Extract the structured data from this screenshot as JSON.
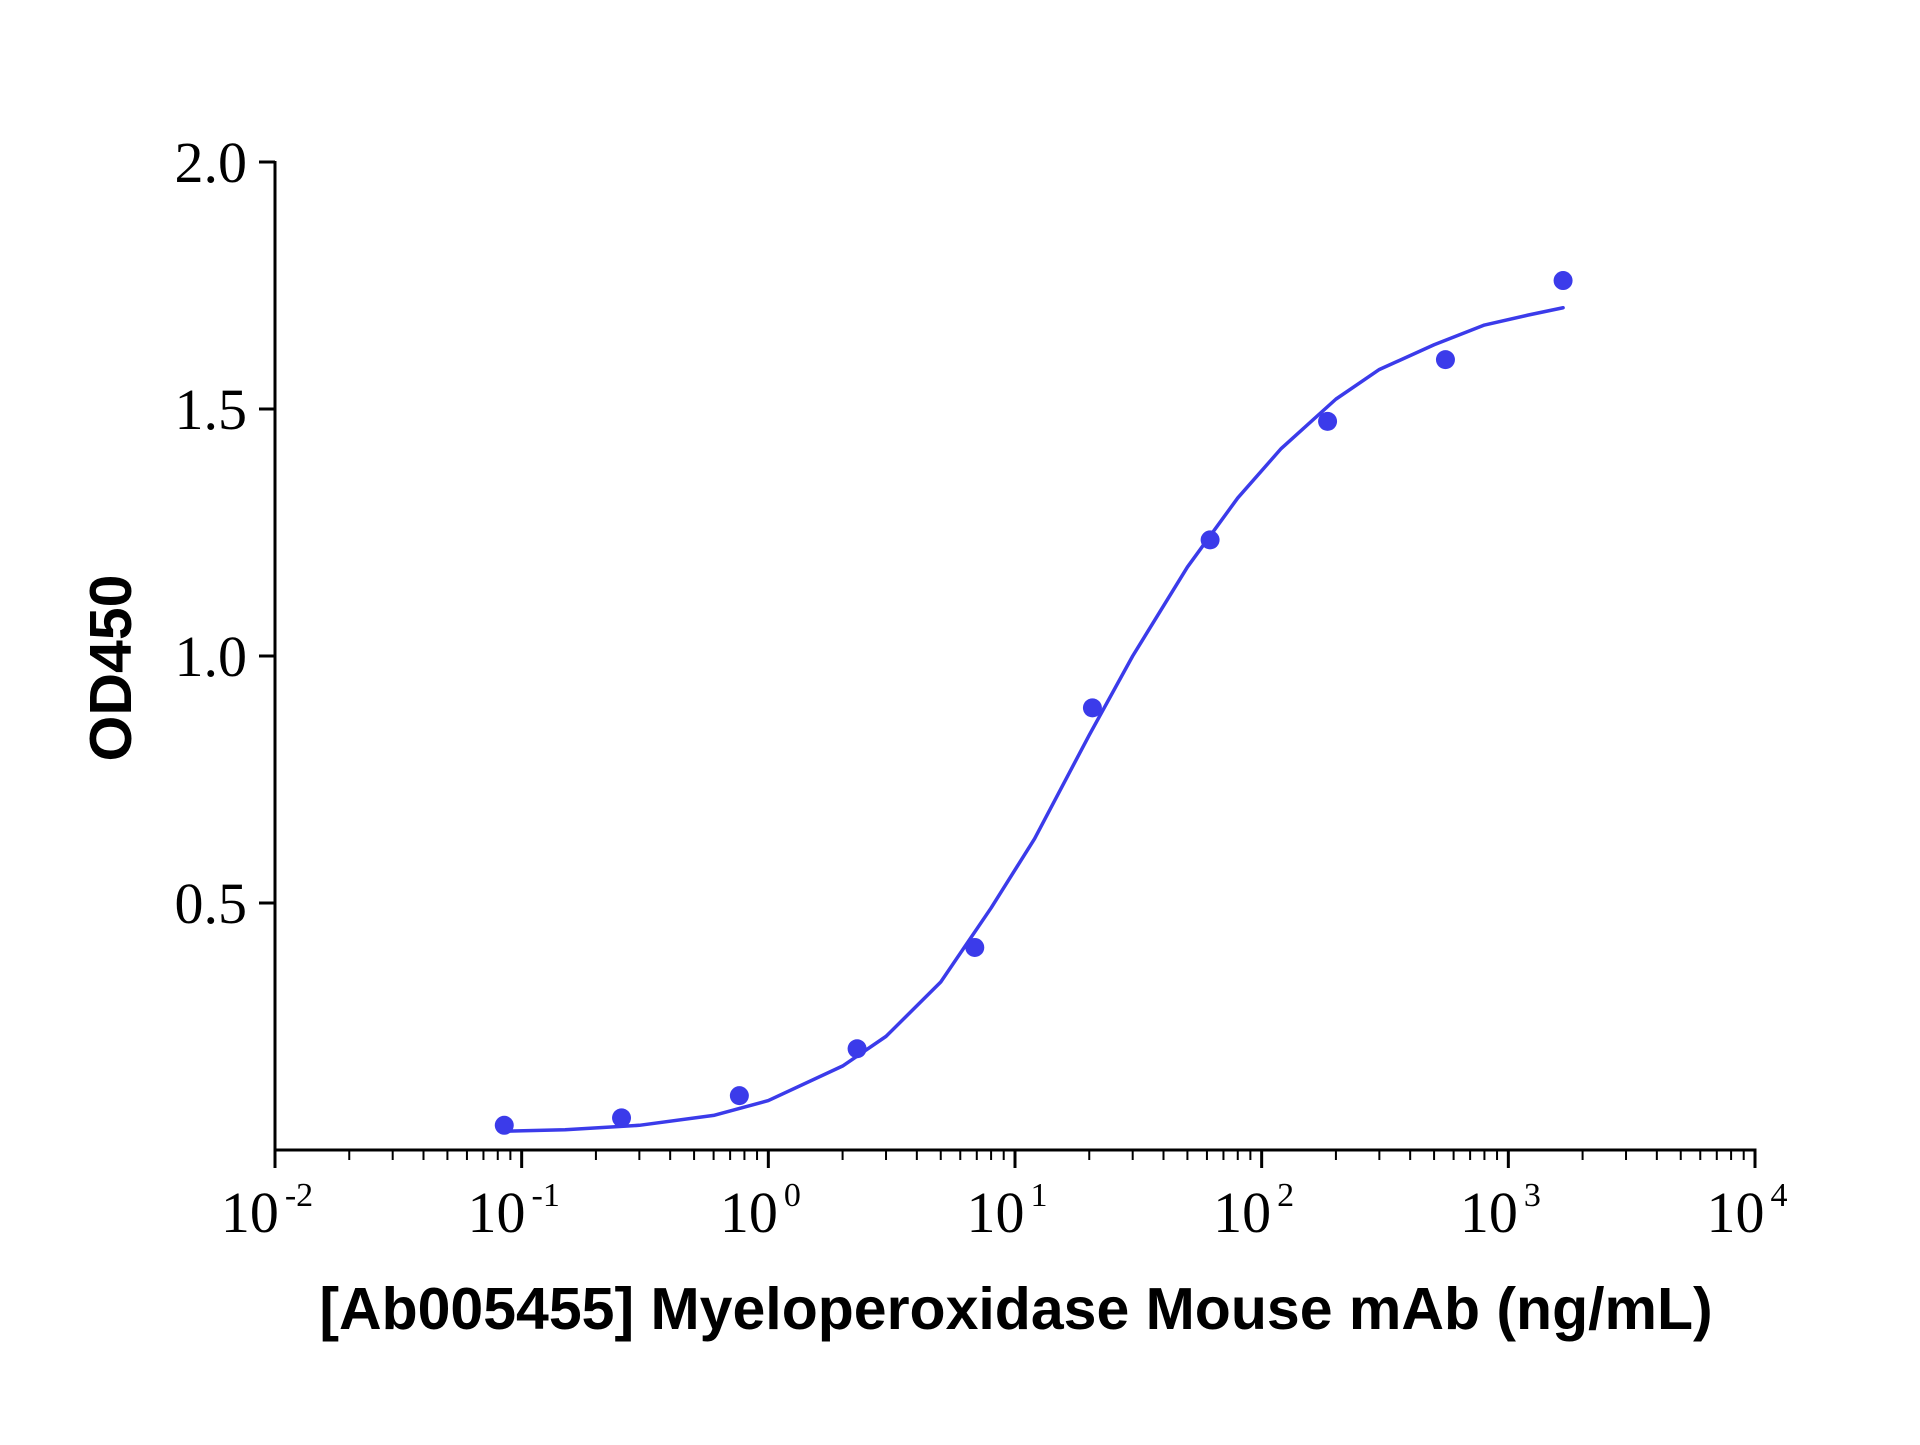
{
  "chart_data": {
    "type": "scatter",
    "title": "",
    "xlabel": "[Ab005455] Myeloperoxidase Mouse mAb (ng/mL)",
    "ylabel": "OD450",
    "x_scale": "log",
    "xlim": [
      0.01,
      10000
    ],
    "ylim": [
      0.0,
      2.0
    ],
    "x_ticks": [
      {
        "base": "10",
        "exp": "-2",
        "value": 0.01
      },
      {
        "base": "10",
        "exp": "-1",
        "value": 0.1
      },
      {
        "base": "10",
        "exp": "0",
        "value": 1
      },
      {
        "base": "10",
        "exp": "1",
        "value": 10
      },
      {
        "base": "10",
        "exp": "2",
        "value": 100
      },
      {
        "base": "10",
        "exp": "3",
        "value": 1000
      },
      {
        "base": "10",
        "exp": "4",
        "value": 10000
      }
    ],
    "y_ticks": [
      {
        "label": "0.5",
        "value": 0.5
      },
      {
        "label": "1.0",
        "value": 1.0
      },
      {
        "label": "1.5",
        "value": 1.5
      },
      {
        "label": "2.0",
        "value": 2.0
      }
    ],
    "grid": false,
    "legend": "none",
    "series": [
      {
        "kind": "points",
        "color": "#3b3bea",
        "x": [
          0.085,
          0.254,
          0.763,
          2.29,
          6.87,
          20.6,
          61.8,
          185,
          556,
          1667
        ],
        "y": [
          0.05,
          0.065,
          0.11,
          0.205,
          0.41,
          0.895,
          1.235,
          1.475,
          1.6,
          1.76
        ]
      },
      {
        "kind": "fit-curve",
        "color": "#3b3bea",
        "x": [
          0.085,
          0.15,
          0.3,
          0.6,
          1,
          2,
          3,
          5,
          8,
          12,
          20,
          30,
          50,
          80,
          120,
          200,
          300,
          500,
          800,
          1200,
          1667
        ],
        "y": [
          0.038,
          0.041,
          0.05,
          0.07,
          0.1,
          0.17,
          0.23,
          0.34,
          0.49,
          0.63,
          0.84,
          1.0,
          1.18,
          1.32,
          1.42,
          1.52,
          1.58,
          1.63,
          1.67,
          1.69,
          1.705
        ]
      }
    ]
  }
}
